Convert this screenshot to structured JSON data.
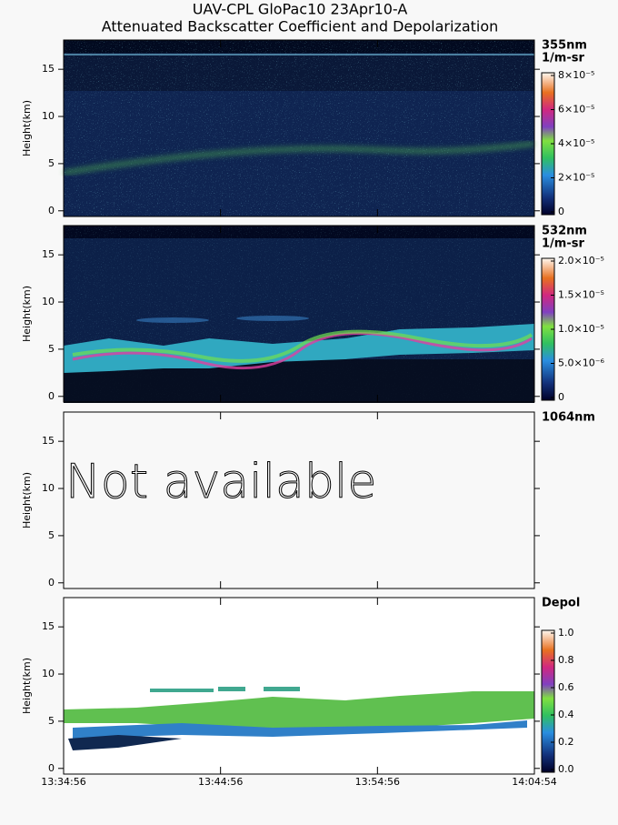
{
  "header": {
    "title": "UAV-CPL GloPac10 23Apr10-A",
    "subtitle": "Attenuated Backscatter Coefficient and Depolarization"
  },
  "x_axis": {
    "categories": [
      "13:34:56",
      "13:44:56",
      "13:54:56",
      "14:04:54"
    ]
  },
  "chart_data": [
    {
      "type": "heatmap",
      "y_label": "Height(km)",
      "ylim": [
        -0.6,
        18.1
      ],
      "yticks": [
        0,
        5,
        10,
        15
      ],
      "channel": "355nm",
      "units": "1/m-sr",
      "clim": [
        0,
        8e-05
      ],
      "cticks": [
        0,
        {
          "value": 2e-05,
          "label": "2×10⁻⁵"
        },
        {
          "value": 4e-05,
          "label": "4×10⁻⁵"
        },
        {
          "value": 6e-05,
          "label": "6×10⁻⁵"
        },
        {
          "value": 8e-05,
          "label": "8×10⁻⁵"
        }
      ]
    },
    {
      "type": "heatmap",
      "y_label": "Height(km)",
      "ylim": [
        -0.6,
        18.1
      ],
      "yticks": [
        0,
        5,
        10,
        15
      ],
      "channel": "532nm",
      "units": "1/m-sr",
      "clim": [
        0,
        2e-05
      ],
      "cticks": [
        0,
        {
          "value": 5e-06,
          "label": "5.0×10⁻⁶"
        },
        {
          "value": 1e-05,
          "label": "1.0×10⁻⁵"
        },
        {
          "value": 1.5e-05,
          "label": "1.5×10⁻⁵"
        },
        {
          "value": 2e-05,
          "label": "2.0×10⁻⁵"
        }
      ]
    },
    {
      "type": "empty",
      "y_label": "Height(km)",
      "ylim": [
        -0.6,
        18.1
      ],
      "yticks": [
        0,
        5,
        10,
        15
      ],
      "channel": "1064nm",
      "message": "Not available"
    },
    {
      "type": "heatmap",
      "y_label": "Height(km)",
      "ylim": [
        -0.6,
        18.1
      ],
      "yticks": [
        0,
        5,
        10,
        15
      ],
      "channel": "Depol",
      "clim": [
        0,
        1
      ],
      "cticks": [
        {
          "value": 0,
          "label": "0.0"
        },
        {
          "value": 0.2,
          "label": "0.2"
        },
        {
          "value": 0.4,
          "label": "0.4"
        },
        {
          "value": 0.6,
          "label": "0.6"
        },
        {
          "value": 0.8,
          "label": "0.8"
        },
        {
          "value": 1,
          "label": "1.0"
        }
      ]
    }
  ]
}
